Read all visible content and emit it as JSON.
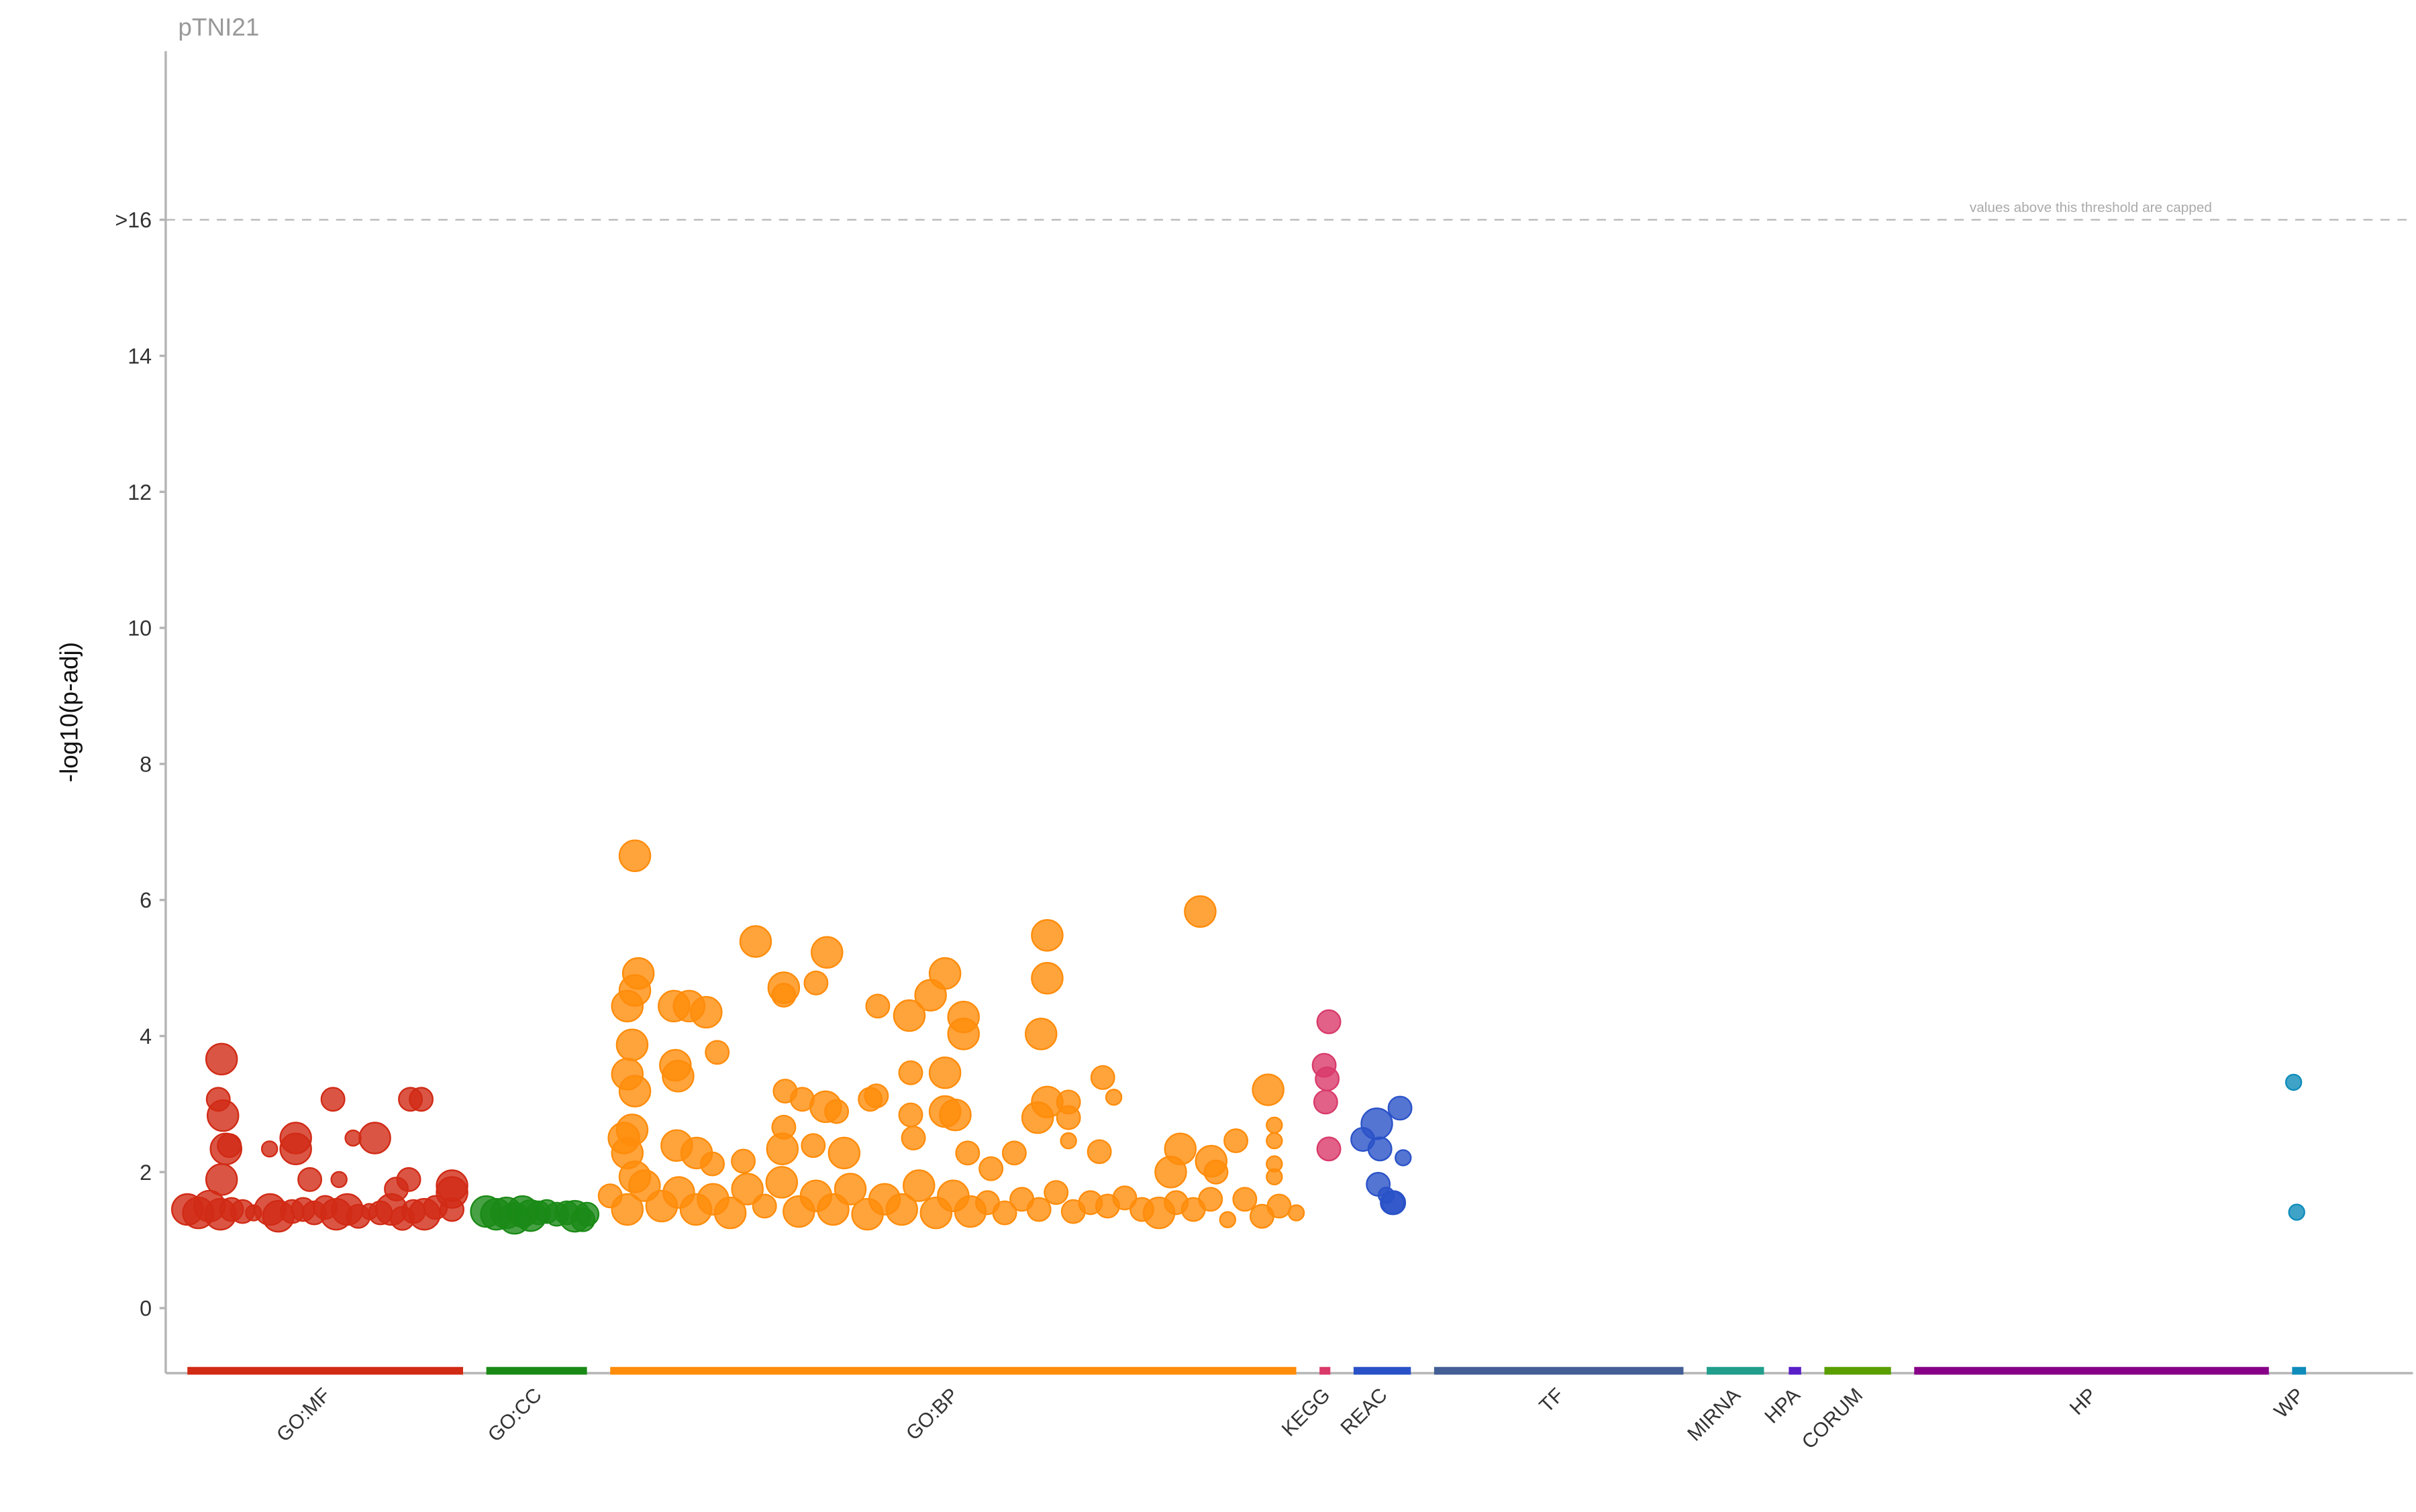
{
  "chart_data": {
    "type": "scatter",
    "title": "pTNI21",
    "ylabel": "-log10(p-adj)",
    "xlabel": "",
    "ylim": [
      -1,
      18
    ],
    "yticks": [
      {
        "value": 0,
        "label": "0"
      },
      {
        "value": 2,
        "label": "2"
      },
      {
        "value": 4,
        "label": "4"
      },
      {
        "value": 6,
        "label": "6"
      },
      {
        "value": 8,
        "label": "8"
      },
      {
        "value": 10,
        "label": "10"
      },
      {
        "value": 12,
        "label": "12"
      },
      {
        "value": 14,
        "label": "14"
      },
      {
        "value": 16,
        "label": ">16"
      }
    ],
    "threshold": {
      "value": 16,
      "label": "values above this threshold are capped"
    },
    "grid": false,
    "point_format": [
      "term_rank_within_source (0-100)",
      "neg_log10_padj",
      "term_size_class (1-3)"
    ],
    "sources": [
      {
        "name": "GO:MF",
        "color": "#d12a15",
        "points": [
          [
            12.4,
            3.66,
            3
          ],
          [
            11.2,
            3.07,
            2
          ],
          [
            12.9,
            2.83,
            3
          ],
          [
            15.2,
            2.39,
            2
          ],
          [
            14,
            2.34,
            3
          ],
          [
            12.4,
            1.89,
            3
          ],
          [
            29.8,
            2.34,
            1
          ],
          [
            39.3,
            2.5,
            3
          ],
          [
            39.3,
            2.34,
            3
          ],
          [
            52.8,
            3.07,
            2
          ],
          [
            60.1,
            2.5,
            1
          ],
          [
            68,
            2.5,
            3
          ],
          [
            44.4,
            1.89,
            2
          ],
          [
            55,
            1.89,
            1
          ],
          [
            80.9,
            3.07,
            2
          ],
          [
            84.8,
            3.07,
            2
          ],
          [
            80.3,
            1.89,
            2
          ],
          [
            75.8,
            1.75,
            2
          ],
          [
            96,
            1.8,
            3
          ],
          [
            96,
            1.7,
            3
          ],
          [
            0,
            1.45,
            3
          ],
          [
            4,
            1.4,
            3
          ],
          [
            8,
            1.5,
            3
          ],
          [
            12,
            1.38,
            3
          ],
          [
            16,
            1.45,
            2
          ],
          [
            20,
            1.42,
            2
          ],
          [
            24,
            1.4,
            1
          ],
          [
            30,
            1.45,
            3
          ],
          [
            33,
            1.35,
            3
          ],
          [
            38,
            1.42,
            2
          ],
          [
            42,
            1.45,
            2
          ],
          [
            46,
            1.4,
            2
          ],
          [
            50,
            1.48,
            2
          ],
          [
            54,
            1.38,
            3
          ],
          [
            58,
            1.45,
            3
          ],
          [
            62,
            1.35,
            2
          ],
          [
            66,
            1.42,
            1
          ],
          [
            70,
            1.4,
            2
          ],
          [
            74,
            1.45,
            3
          ],
          [
            78,
            1.32,
            2
          ],
          [
            82,
            1.42,
            2
          ],
          [
            86,
            1.38,
            3
          ],
          [
            90,
            1.48,
            2
          ],
          [
            96,
            1.45,
            2
          ]
        ]
      },
      {
        "name": "GO:CC",
        "color": "#1a8a16",
        "points": [
          [
            0,
            1.42,
            3
          ],
          [
            10,
            1.38,
            3
          ],
          [
            20,
            1.4,
            3
          ],
          [
            28,
            1.32,
            3
          ],
          [
            36,
            1.42,
            3
          ],
          [
            44,
            1.36,
            3
          ],
          [
            52,
            1.4,
            2
          ],
          [
            60,
            1.42,
            2
          ],
          [
            70,
            1.38,
            2
          ],
          [
            80,
            1.4,
            2
          ],
          [
            88,
            1.35,
            3
          ],
          [
            96,
            1.3,
            2
          ],
          [
            100,
            1.38,
            2
          ]
        ]
      },
      {
        "name": "GO:BP",
        "color": "#ff8c0a",
        "points": [
          [
            3.6,
            6.65,
            3
          ],
          [
            4.1,
            4.92,
            3
          ],
          [
            2.5,
            4.44,
            3
          ],
          [
            3.6,
            4.67,
            3
          ],
          [
            3.2,
            3.87,
            3
          ],
          [
            2.5,
            3.44,
            3
          ],
          [
            3.6,
            3.19,
            3
          ],
          [
            3.2,
            2.62,
            3
          ],
          [
            2.5,
            2.28,
            3
          ],
          [
            2,
            2.5,
            3
          ],
          [
            3.6,
            1.93,
            3
          ],
          [
            9.3,
            4.44,
            3
          ],
          [
            11.5,
            4.44,
            3
          ],
          [
            14,
            4.35,
            3
          ],
          [
            9.5,
            3.57,
            3
          ],
          [
            9.9,
            3.41,
            3
          ],
          [
            15.6,
            3.76,
            2
          ],
          [
            9.7,
            2.39,
            3
          ],
          [
            12.6,
            2.28,
            3
          ],
          [
            21.2,
            5.39,
            3
          ],
          [
            25.3,
            4.71,
            3
          ],
          [
            25.3,
            4.6,
            2
          ],
          [
            30,
            4.78,
            2
          ],
          [
            31.6,
            5.23,
            3
          ],
          [
            25.5,
            3.19,
            2
          ],
          [
            28,
            3.07,
            2
          ],
          [
            31.4,
            2.96,
            3
          ],
          [
            33,
            2.89,
            2
          ],
          [
            25.3,
            2.66,
            2
          ],
          [
            25.1,
            2.34,
            3
          ],
          [
            29.6,
            2.39,
            2
          ],
          [
            34.1,
            2.28,
            3
          ],
          [
            39,
            4.44,
            2
          ],
          [
            43.6,
            4.3,
            3
          ],
          [
            46.7,
            4.6,
            3
          ],
          [
            48.8,
            4.92,
            3
          ],
          [
            51.5,
            4.28,
            3
          ],
          [
            51.5,
            4.03,
            3
          ],
          [
            37.9,
            3.07,
            2
          ],
          [
            38.8,
            3.12,
            2
          ],
          [
            43.8,
            3.46,
            2
          ],
          [
            48.8,
            3.46,
            3
          ],
          [
            43.8,
            2.84,
            2
          ],
          [
            50.3,
            2.84,
            3
          ],
          [
            48.8,
            2.89,
            3
          ],
          [
            44.2,
            2.5,
            2
          ],
          [
            52.1,
            2.28,
            2
          ],
          [
            63.7,
            5.48,
            3
          ],
          [
            63.7,
            4.85,
            3
          ],
          [
            62.8,
            4.03,
            3
          ],
          [
            63.7,
            3.03,
            3
          ],
          [
            66.8,
            3.03,
            2
          ],
          [
            66.8,
            2.8,
            2
          ],
          [
            62.3,
            2.8,
            3
          ],
          [
            66.8,
            2.46,
            1
          ],
          [
            71.8,
            3.39,
            2
          ],
          [
            73.4,
            3.1,
            1
          ],
          [
            71.3,
            2.3,
            2
          ],
          [
            86,
            5.83,
            3
          ],
          [
            83.1,
            2.34,
            3
          ],
          [
            87.6,
            2.16,
            3
          ],
          [
            91.2,
            2.46,
            2
          ],
          [
            95.9,
            3.21,
            3
          ],
          [
            96.8,
            2.69,
            1
          ],
          [
            96.8,
            2.46,
            1
          ],
          [
            96.8,
            2.12,
            1
          ],
          [
            96.8,
            1.93,
            1
          ],
          [
            81.7,
            2.0,
            3
          ],
          [
            88.3,
            2.0,
            2
          ],
          [
            58.9,
            2.28,
            2
          ],
          [
            55.5,
            2.05,
            2
          ],
          [
            19.4,
            2.16,
            2
          ],
          [
            14.9,
            2.12,
            2
          ],
          [
            0,
            1.65,
            2
          ],
          [
            2.5,
            1.45,
            3
          ],
          [
            5,
            1.8,
            3
          ],
          [
            7.5,
            1.5,
            3
          ],
          [
            10,
            1.7,
            3
          ],
          [
            12.5,
            1.45,
            3
          ],
          [
            15,
            1.6,
            3
          ],
          [
            17.5,
            1.4,
            3
          ],
          [
            20,
            1.75,
            3
          ],
          [
            22.5,
            1.5,
            2
          ],
          [
            25,
            1.85,
            3
          ],
          [
            27.5,
            1.42,
            3
          ],
          [
            30,
            1.65,
            3
          ],
          [
            32.5,
            1.45,
            3
          ],
          [
            35,
            1.75,
            3
          ],
          [
            37.5,
            1.38,
            3
          ],
          [
            40,
            1.6,
            3
          ],
          [
            42.5,
            1.45,
            3
          ],
          [
            45,
            1.8,
            3
          ],
          [
            47.5,
            1.4,
            3
          ],
          [
            50,
            1.65,
            3
          ],
          [
            52.5,
            1.42,
            3
          ],
          [
            55,
            1.55,
            2
          ],
          [
            57.5,
            1.4,
            2
          ],
          [
            60,
            1.6,
            2
          ],
          [
            62.5,
            1.45,
            2
          ],
          [
            65,
            1.7,
            2
          ],
          [
            67.5,
            1.42,
            2
          ],
          [
            70,
            1.55,
            2
          ],
          [
            72.5,
            1.5,
            2
          ],
          [
            75,
            1.62,
            2
          ],
          [
            77.5,
            1.45,
            2
          ],
          [
            80,
            1.4,
            3
          ],
          [
            82.5,
            1.55,
            2
          ],
          [
            85,
            1.45,
            2
          ],
          [
            87.5,
            1.6,
            2
          ],
          [
            90,
            1.3,
            1
          ],
          [
            92.5,
            1.6,
            2
          ],
          [
            95,
            1.35,
            2
          ],
          [
            97.5,
            1.5,
            2
          ],
          [
            100,
            1.4,
            1
          ]
        ]
      },
      {
        "name": "KEGG",
        "color": "#d93a6a",
        "points": [
          [
            86,
            4.21,
            2
          ],
          [
            43,
            3.57,
            2
          ],
          [
            71,
            3.37,
            2
          ],
          [
            57,
            3.03,
            2
          ],
          [
            86,
            2.34,
            2
          ]
        ]
      },
      {
        "name": "REAC",
        "color": "#2a52c8",
        "points": [
          [
            81,
            2.94,
            2
          ],
          [
            40.5,
            2.71,
            3
          ],
          [
            16,
            2.48,
            2
          ],
          [
            46,
            2.34,
            2
          ],
          [
            86.5,
            2.21,
            1
          ],
          [
            43,
            1.82,
            2
          ],
          [
            57,
            1.66,
            1
          ],
          [
            67.5,
            1.55,
            2
          ],
          [
            70,
            1.55,
            2
          ]
        ]
      },
      {
        "name": "TF",
        "color": "#445f95",
        "points": []
      },
      {
        "name": "MIRNA",
        "color": "#229e8c",
        "points": []
      },
      {
        "name": "HPA",
        "color": "#5a1fc8",
        "points": []
      },
      {
        "name": "CORUM",
        "color": "#5a9e00",
        "points": []
      },
      {
        "name": "HP",
        "color": "#870087",
        "points": []
      },
      {
        "name": "WP",
        "color": "#0f8cba",
        "points": [
          [
            11,
            3.32,
            1
          ],
          [
            33,
            1.41,
            1
          ]
        ]
      }
    ]
  }
}
